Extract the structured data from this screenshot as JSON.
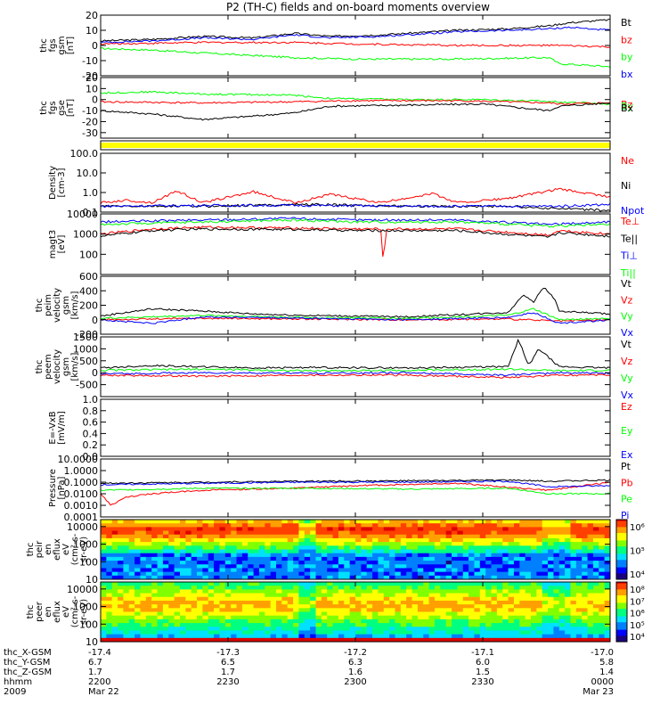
{
  "title": "P2 (TH-C) fields and on-board moments overview",
  "colors": {
    "black": "#000000",
    "red": "#ff0000",
    "green": "#00ff00",
    "blue": "#0000ff",
    "yellow": "#ffff00"
  },
  "chart_data": [
    {
      "id": "fgs-gsm",
      "type": "line",
      "ylabel": [
        "thc",
        "fgs",
        "gsm",
        "[nT]"
      ],
      "yscale": "linear",
      "ylim": [
        -20,
        20
      ],
      "yticks": [
        "20",
        "10",
        "0",
        "-10",
        "-20"
      ],
      "ytick_values": [
        20,
        10,
        0,
        -10,
        -20
      ],
      "legend": [
        {
          "name": "Bt",
          "color": "#000000"
        },
        {
          "name": "bz",
          "color": "#ff0000"
        },
        {
          "name": "by",
          "color": "#00ff00"
        },
        {
          "name": "bx",
          "color": "#0000ff"
        }
      ],
      "series": [
        {
          "name": "Bt",
          "color": "#000000",
          "x": [
            0,
            0.1,
            0.2,
            0.3,
            0.38,
            0.45,
            0.55,
            0.65,
            0.7,
            0.8,
            0.88,
            0.92,
            1
          ],
          "y": [
            3,
            4,
            6,
            5,
            8,
            6,
            7,
            9,
            10,
            11,
            13,
            15,
            17
          ]
        },
        {
          "name": "bz",
          "color": "#ff0000",
          "x": [
            0,
            0.2,
            0.38,
            0.5,
            0.7,
            0.9,
            1
          ],
          "y": [
            1,
            2,
            2,
            1,
            0,
            0,
            -1
          ]
        },
        {
          "name": "by",
          "color": "#00ff00",
          "x": [
            0,
            0.1,
            0.2,
            0.38,
            0.5,
            0.7,
            0.88,
            0.9,
            1
          ],
          "y": [
            -2,
            -3,
            -5,
            -8,
            -9,
            -9,
            -8,
            -12,
            -14
          ]
        },
        {
          "name": "bx",
          "color": "#0000ff",
          "x": [
            0,
            0.1,
            0.2,
            0.3,
            0.38,
            0.45,
            0.55,
            0.65,
            0.7,
            0.8,
            0.88,
            0.92,
            1
          ],
          "y": [
            2,
            3,
            5,
            4,
            7,
            5,
            6,
            8,
            9,
            10,
            11,
            12,
            10
          ]
        }
      ]
    },
    {
      "id": "fgs-gse",
      "type": "line",
      "ylabel": [
        "thc",
        "fgs",
        "gse",
        "[nT]"
      ],
      "yscale": "linear",
      "ylim": [
        -35,
        20
      ],
      "yticks": [
        "20",
        "10",
        "0",
        "-10",
        "-20",
        "-30"
      ],
      "ytick_values": [
        20,
        10,
        0,
        -10,
        -20,
        -30
      ],
      "legend": [
        {
          "name": "Bz",
          "color": "#ff0000"
        },
        {
          "name": "By",
          "color": "#00ff00"
        },
        {
          "name": "Bx",
          "color": "#000000"
        }
      ],
      "series": [
        {
          "name": "By",
          "color": "#00ff00",
          "x": [
            0,
            0.1,
            0.2,
            0.38,
            0.45,
            0.6,
            0.75,
            0.9,
            1
          ],
          "y": [
            6,
            7,
            5,
            4,
            1,
            0,
            0,
            -2,
            -4
          ]
        },
        {
          "name": "Bz",
          "color": "#ff0000",
          "x": [
            0,
            0.2,
            0.38,
            0.5,
            0.7,
            0.88,
            0.9,
            1
          ],
          "y": [
            -2,
            -3,
            -2,
            -1,
            -1,
            -3,
            -4,
            -3
          ]
        },
        {
          "name": "Bx",
          "color": "#000000",
          "x": [
            0,
            0.1,
            0.2,
            0.3,
            0.38,
            0.45,
            0.6,
            0.75,
            0.88,
            0.9,
            1
          ],
          "y": [
            -10,
            -13,
            -18,
            -15,
            -12,
            -6,
            -5,
            -4,
            -10,
            -6,
            -3
          ]
        }
      ]
    },
    {
      "id": "state-bar",
      "type": "bar",
      "color": "#ffff00"
    },
    {
      "id": "density",
      "type": "line",
      "ylabel": [
        "Density",
        "[cm-3]"
      ],
      "yscale": "log",
      "ylim": [
        0.1,
        100
      ],
      "yticks": [
        "100.0",
        "10.0",
        "1.0",
        "0.1"
      ],
      "ytick_values": [
        100,
        10,
        1,
        0.1
      ],
      "legend": [
        {
          "name": "Ne",
          "color": "#ff0000"
        },
        {
          "name": "Ni",
          "color": "#000000"
        },
        {
          "name": "Npot",
          "color": "#0000ff"
        }
      ],
      "series": [
        {
          "name": "Ne",
          "color": "#ff0000",
          "x": [
            0,
            0.05,
            0.1,
            0.15,
            0.2,
            0.3,
            0.38,
            0.45,
            0.55,
            0.65,
            0.7,
            0.8,
            0.9,
            1
          ],
          "y": [
            0.3,
            0.4,
            0.3,
            1.2,
            0.3,
            1.1,
            0.3,
            0.8,
            0.3,
            0.9,
            0.3,
            0.5,
            1.5,
            0.6
          ]
        },
        {
          "name": "Ni",
          "color": "#000000",
          "x": [
            0,
            0.2,
            0.4,
            0.6,
            0.8,
            0.9,
            1
          ],
          "y": [
            0.2,
            0.2,
            0.25,
            0.2,
            0.2,
            0.15,
            0.12
          ]
        },
        {
          "name": "Npot",
          "color": "#0000ff",
          "x": [
            0,
            0.2,
            0.4,
            0.6,
            0.8,
            0.9,
            1
          ],
          "y": [
            0.2,
            0.22,
            0.22,
            0.2,
            0.2,
            0.2,
            0.25
          ]
        }
      ]
    },
    {
      "id": "temperature",
      "type": "line",
      "ylabel": [
        "magt3",
        "[eV]"
      ],
      "yscale": "log",
      "ylim": [
        10,
        10000
      ],
      "yticks": [
        "10000",
        "1000",
        "100"
      ],
      "ytick_values": [
        10000,
        1000,
        100
      ],
      "legend": [
        {
          "name": "Te⊥",
          "color": "#ff0000"
        },
        {
          "name": "Te||",
          "color": "#000000"
        },
        {
          "name": "Ti⊥",
          "color": "#0000ff"
        },
        {
          "name": "Ti||",
          "color": "#00ff00"
        }
      ],
      "series": [
        {
          "name": "Ti⊥",
          "color": "#0000ff",
          "x": [
            0,
            0.2,
            0.38,
            0.5,
            0.7,
            0.88,
            1
          ],
          "y": [
            4000,
            5000,
            6000,
            5000,
            5000,
            3000,
            4000
          ]
        },
        {
          "name": "Ti||",
          "color": "#00ff00",
          "x": [
            0,
            0.2,
            0.38,
            0.5,
            0.7,
            0.88,
            1
          ],
          "y": [
            3000,
            4000,
            5000,
            4000,
            4000,
            2500,
            3000
          ]
        },
        {
          "name": "Te⊥",
          "color": "#ff0000",
          "x": [
            0,
            0.1,
            0.2,
            0.38,
            0.5,
            0.55,
            0.555,
            0.56,
            0.7,
            0.88,
            0.9,
            1
          ],
          "y": [
            1000,
            1800,
            2200,
            2000,
            1800,
            1800,
            25,
            1800,
            1800,
            900,
            1500,
            1000
          ]
        },
        {
          "name": "Te||",
          "color": "#000000",
          "x": [
            0,
            0.1,
            0.2,
            0.38,
            0.5,
            0.7,
            0.88,
            0.9,
            1
          ],
          "y": [
            800,
            1500,
            1800,
            1700,
            1500,
            1500,
            700,
            1200,
            800
          ]
        }
      ]
    },
    {
      "id": "velocity-gsm",
      "type": "line",
      "ylabel": [
        "thc",
        "peim",
        "velocity",
        "gsm",
        "[km/s]"
      ],
      "yscale": "linear",
      "ylim": [
        -200,
        600
      ],
      "yticks": [
        "600",
        "400",
        "200",
        "0",
        "-200"
      ],
      "ytick_values": [
        600,
        400,
        200,
        0,
        -200
      ],
      "legend": [
        {
          "name": "Vt",
          "color": "#000000"
        },
        {
          "name": "Vz",
          "color": "#ff0000"
        },
        {
          "name": "Vy",
          "color": "#00ff00"
        },
        {
          "name": "Vx",
          "color": "#0000ff"
        }
      ],
      "series": [
        {
          "name": "Vt",
          "color": "#000000",
          "x": [
            0,
            0.1,
            0.2,
            0.3,
            0.4,
            0.6,
            0.8,
            0.83,
            0.85,
            0.87,
            0.89,
            0.9,
            1
          ],
          "y": [
            50,
            150,
            120,
            80,
            60,
            40,
            100,
            350,
            250,
            450,
            300,
            120,
            80
          ]
        },
        {
          "name": "Vz",
          "color": "#ff0000",
          "x": [
            0,
            0.2,
            0.4,
            0.6,
            0.8,
            0.9,
            1
          ],
          "y": [
            0,
            20,
            10,
            0,
            10,
            -20,
            0
          ]
        },
        {
          "name": "Vy",
          "color": "#00ff00",
          "x": [
            0,
            0.2,
            0.4,
            0.6,
            0.8,
            0.85,
            0.9,
            1
          ],
          "y": [
            20,
            60,
            30,
            20,
            60,
            150,
            0,
            20
          ]
        },
        {
          "name": "Vx",
          "color": "#0000ff",
          "x": [
            0,
            0.1,
            0.2,
            0.4,
            0.6,
            0.8,
            0.85,
            0.9,
            1
          ],
          "y": [
            0,
            -50,
            40,
            20,
            0,
            30,
            100,
            -50,
            0
          ]
        }
      ]
    },
    {
      "id": "velocity-gsm-2",
      "type": "line",
      "ylabel": [
        "thc",
        "peem",
        "velocity",
        "gsm",
        "[km/s]"
      ],
      "yscale": "linear",
      "ylim": [
        -1000,
        1500
      ],
      "yticks": [
        "1500",
        "1000",
        "500",
        "0",
        "-500"
      ],
      "ytick_values": [
        1500,
        1000,
        500,
        0,
        -500
      ],
      "legend": [
        {
          "name": "Vt",
          "color": "#000000"
        },
        {
          "name": "Vz",
          "color": "#ff0000"
        },
        {
          "name": "Vy",
          "color": "#00ff00"
        },
        {
          "name": "Vx",
          "color": "#0000ff"
        }
      ],
      "series": [
        {
          "name": "Vt",
          "color": "#000000",
          "x": [
            0,
            0.1,
            0.2,
            0.3,
            0.4,
            0.6,
            0.8,
            0.82,
            0.84,
            0.86,
            0.9,
            1
          ],
          "y": [
            200,
            300,
            250,
            200,
            220,
            200,
            250,
            1400,
            300,
            1000,
            250,
            200
          ]
        },
        {
          "name": "Vz",
          "color": "#ff0000",
          "x": [
            0,
            0.2,
            0.4,
            0.6,
            0.8,
            0.9,
            1
          ],
          "y": [
            -100,
            -150,
            -100,
            -100,
            -200,
            -100,
            -100
          ]
        },
        {
          "name": "Vy",
          "color": "#00ff00",
          "x": [
            0,
            0.2,
            0.4,
            0.6,
            0.8,
            0.9,
            1
          ],
          "y": [
            100,
            150,
            80,
            100,
            150,
            80,
            100
          ]
        },
        {
          "name": "Vx",
          "color": "#0000ff",
          "x": [
            0,
            0.2,
            0.4,
            0.6,
            0.8,
            0.9,
            1
          ],
          "y": [
            -50,
            0,
            -20,
            0,
            -100,
            0,
            -20
          ]
        }
      ]
    },
    {
      "id": "efield",
      "type": "line",
      "ylabel": [
        "E=-VxB",
        "[mV/m]"
      ],
      "yscale": "linear",
      "ylim": [
        0,
        1
      ],
      "yticks": [
        "1.0",
        "0.8",
        "0.6",
        "0.4",
        "0.2",
        "0.0"
      ],
      "ytick_values": [
        1,
        0.8,
        0.6,
        0.4,
        0.2,
        0
      ],
      "legend": [
        {
          "name": "Ez",
          "color": "#ff0000"
        },
        {
          "name": "Ey",
          "color": "#00ff00"
        },
        {
          "name": "Ex",
          "color": "#0000ff"
        }
      ],
      "series": []
    },
    {
      "id": "pressure",
      "type": "line",
      "ylabel": [
        "Pressure",
        "[nPa]"
      ],
      "yscale": "log",
      "ylim": [
        0.0001,
        10
      ],
      "yticks": [
        "10.0000",
        "1.0000",
        "0.1000",
        "0.0100",
        "0.0010",
        "0.0001"
      ],
      "ytick_values": [
        10,
        1,
        0.1,
        0.01,
        0.001,
        0.0001
      ],
      "legend": [
        {
          "name": "Pt",
          "color": "#000000"
        },
        {
          "name": "Pb",
          "color": "#ff0000"
        },
        {
          "name": "Pe",
          "color": "#00ff00"
        },
        {
          "name": "Pi",
          "color": "#0000ff"
        }
      ],
      "series": [
        {
          "name": "Pt",
          "color": "#000000",
          "x": [
            0,
            0.2,
            0.4,
            0.6,
            0.8,
            0.88,
            1
          ],
          "y": [
            0.08,
            0.1,
            0.12,
            0.13,
            0.15,
            0.12,
            0.15
          ]
        },
        {
          "name": "Pb",
          "color": "#ff0000",
          "x": [
            0,
            0.02,
            0.05,
            0.1,
            0.2,
            0.38,
            0.5,
            0.7,
            0.88,
            1
          ],
          "y": [
            0.01,
            0.001,
            0.005,
            0.01,
            0.02,
            0.03,
            0.05,
            0.08,
            0.02,
            0.1
          ]
        },
        {
          "name": "Pe",
          "color": "#00ff00",
          "x": [
            0,
            0.2,
            0.4,
            0.6,
            0.8,
            0.88,
            1
          ],
          "y": [
            0.02,
            0.03,
            0.03,
            0.025,
            0.03,
            0.01,
            0.01
          ]
        },
        {
          "name": "Pi",
          "color": "#0000ff",
          "x": [
            0,
            0.2,
            0.4,
            0.6,
            0.8,
            0.88,
            1
          ],
          "y": [
            0.06,
            0.08,
            0.1,
            0.1,
            0.12,
            0.04,
            0.05
          ]
        }
      ]
    },
    {
      "id": "ion-spectrogram",
      "type": "heatmap",
      "ylabel": [
        "thc",
        "peir",
        "en",
        "eflux",
        "eV",
        "(cm²-s-",
        "sr-eV)"
      ],
      "yscale": "log",
      "ylim": [
        10,
        25000
      ],
      "yticks": [
        "10000",
        "1000",
        "100",
        "10"
      ],
      "ytick_values": [
        10000,
        1000,
        100,
        10
      ],
      "colorbar": {
        "ticks": [
          "10⁶",
          "10⁵",
          "10⁴"
        ]
      }
    },
    {
      "id": "electron-spectrogram",
      "type": "heatmap",
      "ylabel": [
        "thc",
        "peer",
        "en",
        "eflux",
        "eV",
        "(cm²-s-",
        "sr-eV)"
      ],
      "yscale": "log",
      "ylim": [
        10,
        25000
      ],
      "yticks": [
        "10000",
        "1000",
        "100",
        "10"
      ],
      "ytick_values": [
        10000,
        1000,
        100,
        10
      ],
      "colorbar": {
        "ticks": [
          "10⁸",
          "10⁷",
          "10⁶",
          "10⁵",
          "10⁴"
        ]
      }
    }
  ],
  "xaxis": {
    "rows": [
      {
        "label": "thc_X-GSM",
        "values": [
          "-17.4",
          "-17.3",
          "-17.2",
          "-17.1",
          "-17.0"
        ]
      },
      {
        "label": "thc_Y-GSM",
        "values": [
          "6.7",
          "6.5",
          "6.3",
          "6.0",
          "5.8"
        ]
      },
      {
        "label": "thc_Z-GSM",
        "values": [
          "1.7",
          "1.7",
          "1.6",
          "1.5",
          "1.4"
        ]
      },
      {
        "label": "hhmm",
        "values": [
          "2200",
          "2230",
          "2300",
          "2330",
          "0000"
        ]
      },
      {
        "label": "2009",
        "values": [
          "Mar 22",
          "",
          "",
          "",
          "Mar 23"
        ]
      }
    ]
  }
}
